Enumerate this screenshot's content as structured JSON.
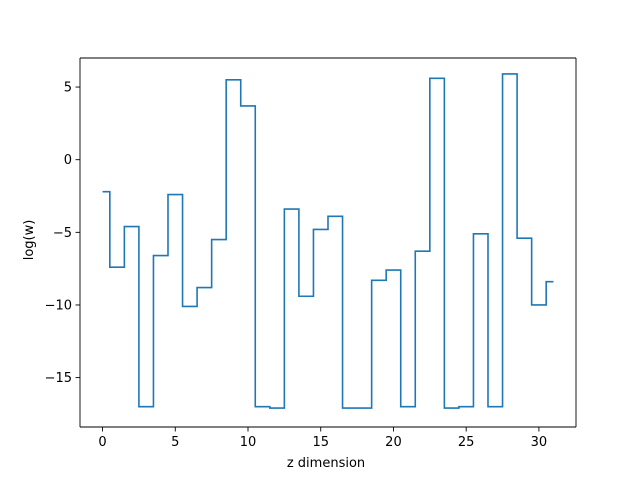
{
  "chart_data": {
    "type": "line",
    "step": "mid",
    "xlabel": "z dimension",
    "ylabel": "log(w)",
    "xlim": [
      -1.55,
      32.55
    ],
    "ylim": [
      -18.4,
      7.0
    ],
    "x_ticks": [
      0,
      5,
      10,
      15,
      20,
      25,
      30
    ],
    "x_tick_labels": [
      "0",
      "5",
      "10",
      "15",
      "20",
      "25",
      "30"
    ],
    "y_ticks": [
      -15,
      -10,
      -5,
      0,
      5
    ],
    "y_tick_labels": [
      "−15",
      "−10",
      "−5",
      "0",
      "5"
    ],
    "grid": false,
    "series": [
      {
        "color": "#1f77b4",
        "x": [
          0,
          1,
          2,
          3,
          4,
          5,
          6,
          7,
          8,
          9,
          10,
          11,
          12,
          13,
          14,
          15,
          16,
          17,
          18,
          19,
          20,
          21,
          22,
          23,
          24,
          25,
          26,
          27,
          28,
          29,
          30,
          31
        ],
        "values": [
          -2.2,
          -7.4,
          -4.6,
          -17.0,
          -6.6,
          -2.4,
          -10.1,
          -8.8,
          -5.5,
          5.5,
          3.7,
          -17.0,
          -17.1,
          -3.4,
          -9.4,
          -4.8,
          -3.9,
          -17.1,
          -17.1,
          -8.3,
          -7.6,
          -17.0,
          -6.3,
          5.6,
          -17.1,
          -17.0,
          -5.1,
          -17.0,
          5.9,
          -5.4,
          -10.0,
          -8.4
        ]
      }
    ]
  }
}
